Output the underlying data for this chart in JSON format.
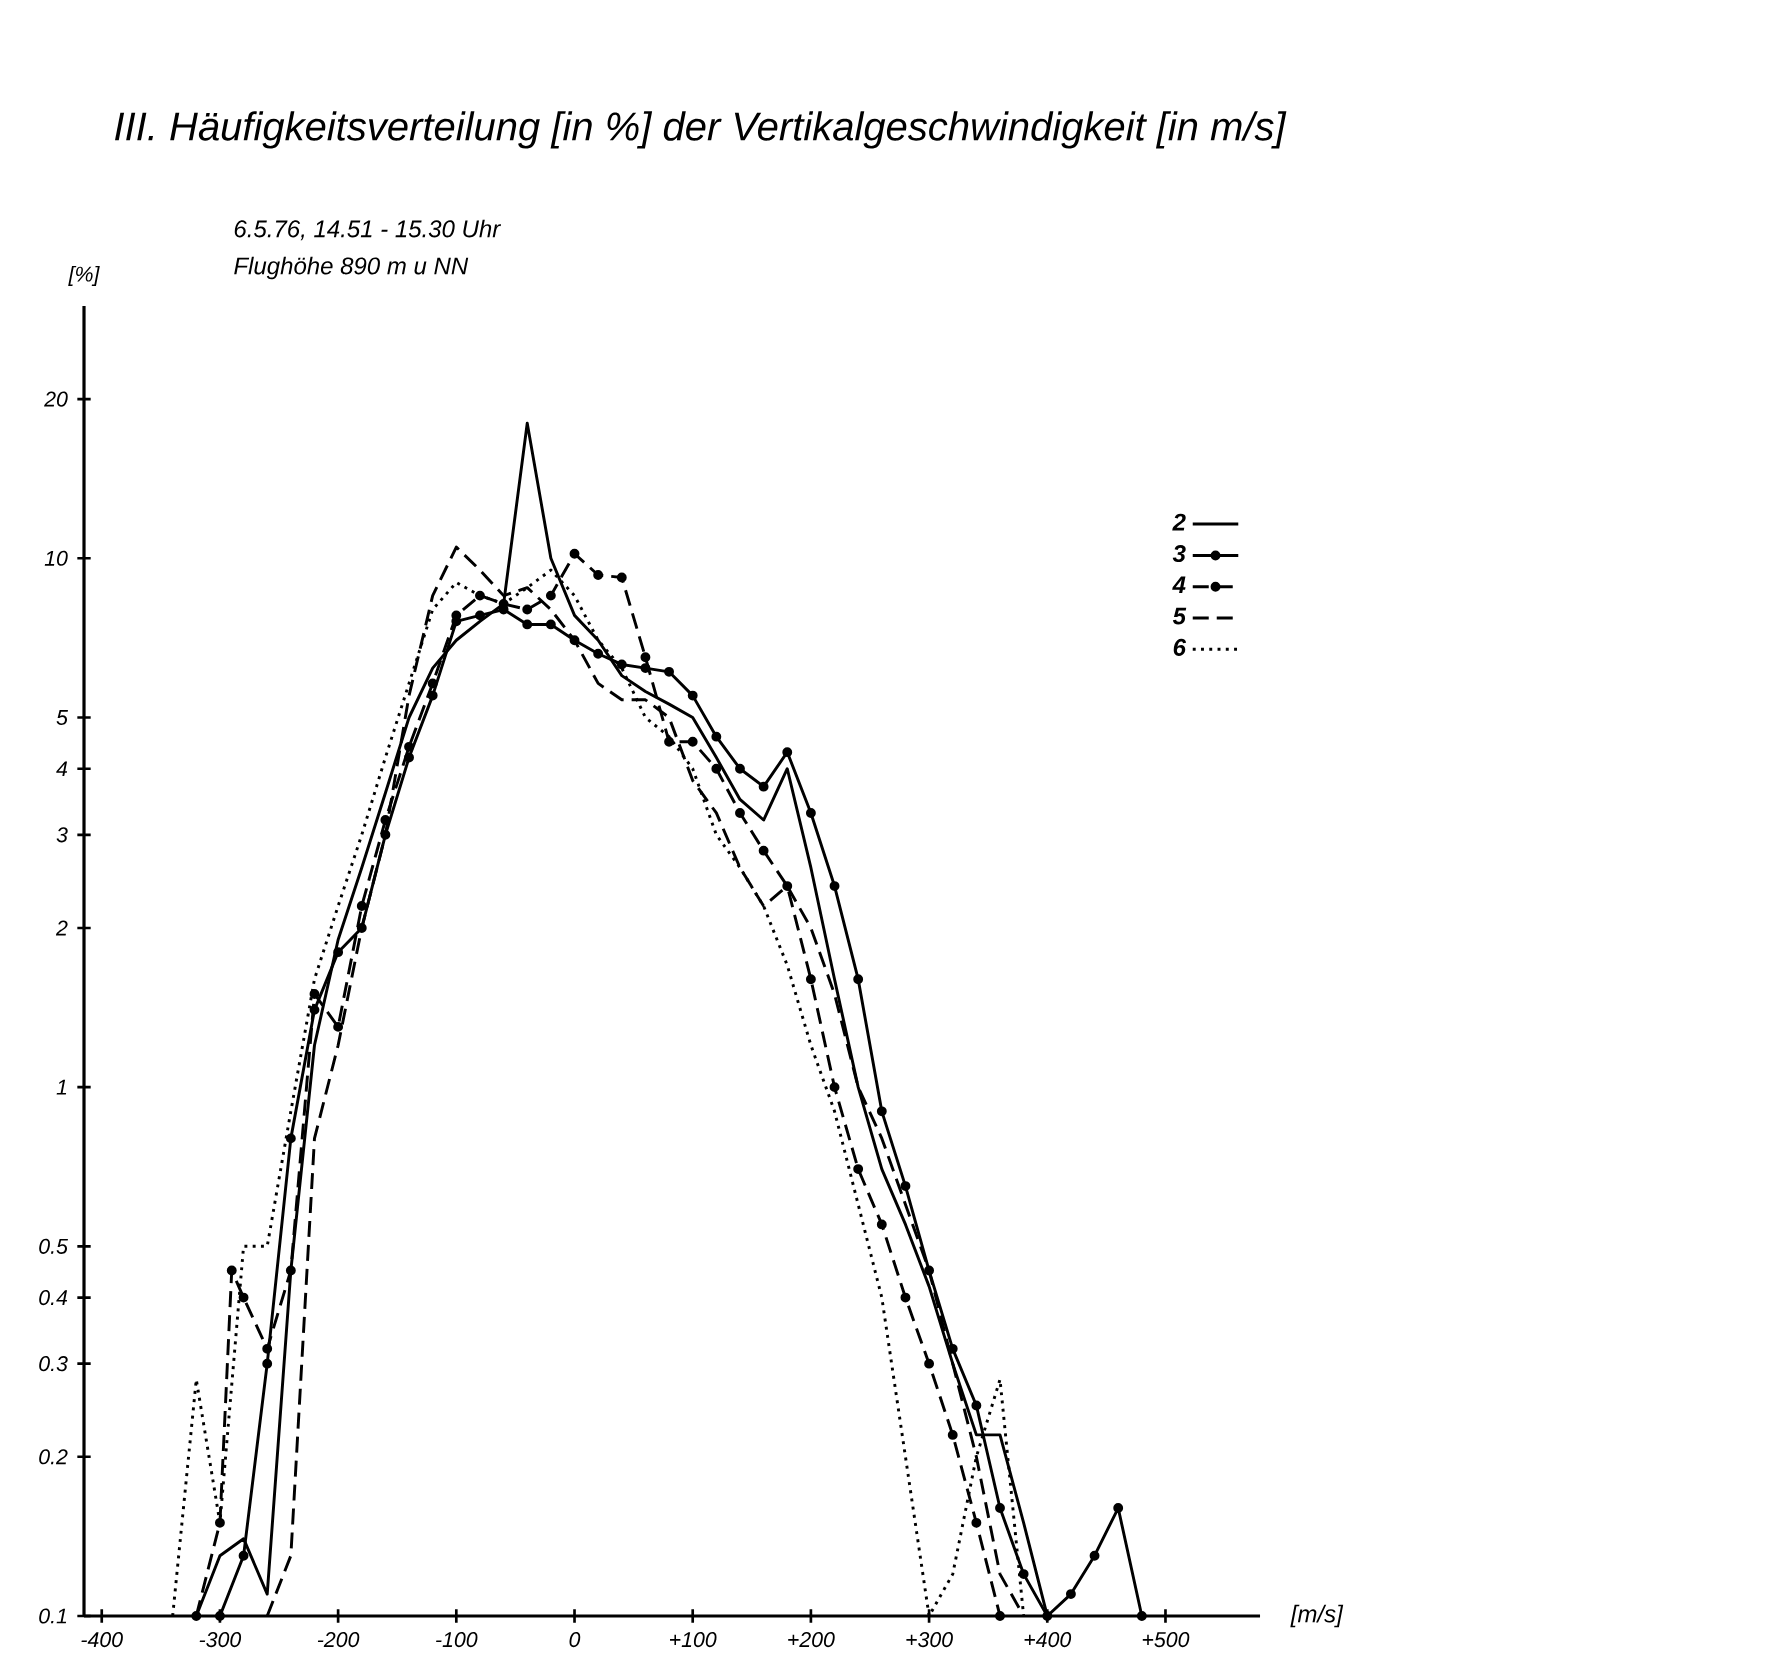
{
  "chart_data": {
    "type": "line",
    "title": "III. Häufigkeitsverteilung [in %] der Vertikalgeschwindigkeit [in m/s]",
    "annotations": [
      "6.5.76, 14.51 - 15.30 Uhr",
      "Flughöhe 890 m u NN"
    ],
    "xlabel": "[m/s]",
    "ylabel": "[%]",
    "log": "y",
    "grid": false,
    "legend": "right",
    "xlim": [
      -415,
      580
    ],
    "xticks": [
      {
        "value": -400,
        "label": "-400"
      },
      {
        "value": -300,
        "label": "-300"
      },
      {
        "value": -200,
        "label": "-200"
      },
      {
        "value": -100,
        "label": "-100"
      },
      0,
      {
        "value": 100,
        "label": "+100"
      },
      {
        "value": 200,
        "label": "+200"
      },
      {
        "value": 300,
        "label": "+300"
      },
      {
        "value": 400,
        "label": "+400"
      },
      {
        "value": 500,
        "label": "+500"
      }
    ],
    "ylim": [
      0.1,
      30
    ],
    "yticks": [
      0.1,
      0.2,
      0.3,
      0.4,
      0.5,
      1,
      2,
      3,
      4,
      5,
      10,
      20
    ],
    "series": [
      {
        "name": "2",
        "color": "#000000",
        "line_style": "solid",
        "marker": "none",
        "x": [
          -320,
          -300,
          -280,
          -260,
          -240,
          -220,
          -200,
          -180,
          -160,
          -140,
          -120,
          -100,
          -80,
          -60,
          -40,
          -20,
          0,
          20,
          40,
          60,
          80,
          100,
          120,
          140,
          160,
          180,
          200,
          220,
          240,
          260,
          280,
          300,
          320,
          340,
          360,
          380,
          400
        ],
        "values": [
          0.1,
          0.13,
          0.14,
          0.11,
          0.45,
          1.2,
          1.9,
          2.6,
          3.6,
          5.0,
          6.2,
          7.0,
          7.6,
          8.2,
          18,
          10,
          7.8,
          7.0,
          6.0,
          5.6,
          5.3,
          5.0,
          4.2,
          3.5,
          3.2,
          4.0,
          2.6,
          1.6,
          1.0,
          0.7,
          0.55,
          0.42,
          0.3,
          0.22,
          0.22,
          0.15,
          0.1
        ]
      },
      {
        "name": "3",
        "color": "#000000",
        "line_style": "solid",
        "marker": "circle",
        "x": [
          -300,
          -280,
          -260,
          -240,
          -220,
          -200,
          -180,
          -160,
          -140,
          -120,
          -100,
          -80,
          -60,
          -40,
          -20,
          0,
          20,
          40,
          60,
          80,
          100,
          120,
          140,
          160,
          180,
          200,
          220,
          240,
          260,
          280,
          300,
          320,
          340,
          360,
          380,
          400,
          420,
          440,
          460,
          480
        ],
        "values": [
          0.1,
          0.13,
          0.3,
          0.8,
          1.4,
          1.8,
          2.0,
          3.0,
          4.2,
          5.5,
          7.6,
          7.8,
          8.0,
          7.5,
          7.5,
          7.0,
          6.6,
          6.3,
          6.2,
          6.1,
          5.5,
          4.6,
          4.0,
          3.7,
          4.3,
          3.3,
          2.4,
          1.6,
          0.9,
          0.65,
          0.45,
          0.32,
          0.25,
          0.16,
          0.12,
          0.1,
          0.11,
          0.13,
          0.16,
          0.1
        ]
      },
      {
        "name": "4",
        "color": "#000000",
        "line_style": "dashed",
        "marker": "circle",
        "x": [
          -320,
          -300,
          -290,
          -280,
          -260,
          -240,
          -220,
          -200,
          -180,
          -160,
          -140,
          -120,
          -100,
          -80,
          -60,
          -40,
          -20,
          0,
          20,
          40,
          60,
          80,
          100,
          120,
          140,
          160,
          180,
          200,
          220,
          240,
          260,
          280,
          300,
          320,
          340,
          360
        ],
        "values": [
          0.1,
          0.15,
          0.45,
          0.4,
          0.32,
          0.45,
          1.5,
          1.3,
          2.2,
          3.2,
          4.4,
          5.8,
          7.8,
          8.5,
          8.2,
          8.0,
          8.5,
          10.2,
          9.3,
          9.2,
          6.5,
          4.5,
          4.5,
          4.0,
          3.3,
          2.8,
          2.4,
          1.6,
          1.0,
          0.7,
          0.55,
          0.4,
          0.3,
          0.22,
          0.15,
          0.1
        ]
      },
      {
        "name": "5",
        "color": "#000000",
        "line_style": "dashed",
        "marker": "none",
        "x": [
          -260,
          -240,
          -220,
          -200,
          -180,
          -160,
          -140,
          -120,
          -100,
          -80,
          -60,
          -40,
          -20,
          0,
          20,
          40,
          60,
          80,
          100,
          120,
          140,
          160,
          180,
          200,
          220,
          240,
          260,
          280,
          300,
          320,
          340,
          360,
          380
        ],
        "values": [
          0.1,
          0.13,
          0.8,
          1.2,
          2.0,
          3.0,
          5.5,
          8.5,
          10.5,
          9.5,
          8.5,
          8.8,
          8.0,
          7.0,
          5.8,
          5.4,
          5.4,
          5.0,
          3.8,
          3.3,
          2.6,
          2.2,
          2.4,
          2.0,
          1.5,
          1.0,
          0.8,
          0.6,
          0.45,
          0.3,
          0.2,
          0.12,
          0.1
        ]
      },
      {
        "name": "6",
        "color": "#000000",
        "line_style": "dotted",
        "marker": "none",
        "x": [
          -340,
          -320,
          -300,
          -280,
          -260,
          -240,
          -220,
          -200,
          -180,
          -160,
          -140,
          -120,
          -100,
          -80,
          -60,
          -40,
          -20,
          0,
          20,
          40,
          60,
          80,
          100,
          120,
          140,
          160,
          180,
          200,
          220,
          240,
          260,
          280,
          300,
          320,
          340,
          360,
          380
        ],
        "values": [
          0.1,
          0.28,
          0.15,
          0.5,
          0.5,
          0.9,
          1.6,
          2.2,
          3.0,
          4.2,
          5.8,
          8.0,
          9.0,
          8.5,
          8.2,
          8.8,
          9.5,
          8.5,
          7.0,
          6.2,
          5.0,
          4.6,
          4.0,
          3.0,
          2.6,
          2.2,
          1.7,
          1.2,
          0.9,
          0.6,
          0.4,
          0.2,
          0.1,
          0.12,
          0.2,
          0.28,
          0.1
        ]
      }
    ]
  }
}
